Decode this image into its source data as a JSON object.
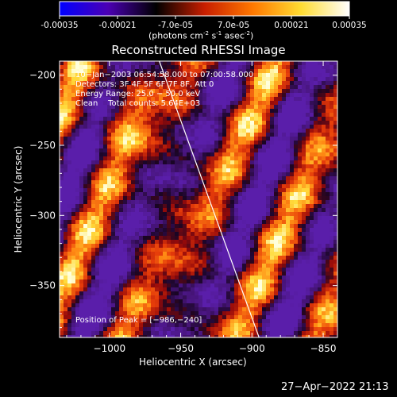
{
  "colorbar": {
    "ticks": [
      "-0.00035",
      "-0.00021",
      "-7.0e-05",
      "7.0e-05",
      "0.00021",
      "0.00035"
    ],
    "units": {
      "prefix": "(photons cm",
      "exp1": "-2",
      "mid1": " s",
      "exp2": "-1",
      "mid2": " asec",
      "exp3": "-2",
      "suffix": ")"
    },
    "range": [
      -0.00035,
      0.00035
    ],
    "colormap": [
      "#0000ff",
      "#4b00b4",
      "#000000",
      "#c81e00",
      "#ff7800",
      "#ffdc32",
      "#ffffff"
    ]
  },
  "chart_data": {
    "type": "heatmap",
    "title": "Reconstructed RHESSI Image",
    "xlabel": "Heliocentric X (arcsec)",
    "ylabel": "Heliocentric Y (arcsec)",
    "xlim": [
      -1035,
      -840
    ],
    "ylim": [
      -387,
      -190
    ],
    "xticks": [
      -1000,
      -950,
      -900,
      -850
    ],
    "yticks": [
      -200,
      -250,
      -300,
      -350
    ],
    "xtick_labels": [
      "−1000",
      "−950",
      "−900",
      "−850"
    ],
    "ytick_labels": [
      "−200",
      "−250",
      "−300",
      "−350"
    ],
    "limb_line": [
      [
        -965,
        -190
      ],
      [
        -895,
        -387
      ]
    ],
    "peak": [
      -986,
      -240
    ],
    "info_lines": [
      "10−Jan−2003 06:54:58.000 to 07:00:58.000",
      "Detectors: 3F 4F 5F 6F 7F 8F, Att 0",
      "Energy Range: 25.0 − 50.0 keV",
      "Clean    Total counts: 5.64E+03"
    ],
    "peak_label": "Position of Peak = [−986,−240]"
  },
  "timestamp": "27−Apr−2022 21:13"
}
